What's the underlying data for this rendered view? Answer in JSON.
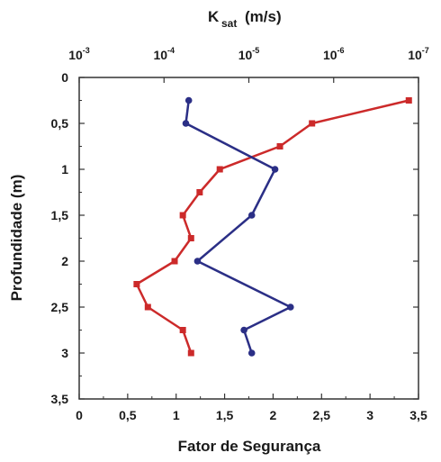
{
  "chart_data": {
    "type": "line",
    "title": "",
    "top_axis": {
      "label_main": "K",
      "label_sub": "sat",
      "label_unit": "(m/s)",
      "scale": "log-reversed",
      "range": [
        0.001,
        1e-07
      ],
      "ticks": [
        {
          "base": "10",
          "exp": "-3",
          "value": 0.001
        },
        {
          "base": "10",
          "exp": "-4",
          "value": 0.0001
        },
        {
          "base": "10",
          "exp": "-5",
          "value": 1e-05
        },
        {
          "base": "10",
          "exp": "-6",
          "value": 1e-06
        },
        {
          "base": "10",
          "exp": "-7",
          "value": 1e-07
        }
      ]
    },
    "bottom_axis": {
      "label": "Fator de Segurança",
      "range": [
        0,
        3.5
      ],
      "ticks": [
        {
          "label": "0",
          "value": 0
        },
        {
          "label": "0,5",
          "value": 0.5
        },
        {
          "label": "1",
          "value": 1
        },
        {
          "label": "1,5",
          "value": 1.5
        },
        {
          "label": "2",
          "value": 2
        },
        {
          "label": "2,5",
          "value": 2.5
        },
        {
          "label": "3",
          "value": 3
        },
        {
          "label": "3,5",
          "value": 3.5
        }
      ]
    },
    "y_axis": {
      "label": "Profundidade (m)",
      "range": [
        0,
        3.5
      ],
      "inverted": true,
      "ticks": [
        {
          "label": "0",
          "value": 0
        },
        {
          "label": "0,5",
          "value": 0.5
        },
        {
          "label": "1",
          "value": 1
        },
        {
          "label": "1,5",
          "value": 1.5
        },
        {
          "label": "2",
          "value": 2
        },
        {
          "label": "2,5",
          "value": 2.5
        },
        {
          "label": "3",
          "value": 3
        },
        {
          "label": "3,5",
          "value": 3.5
        }
      ]
    },
    "grid": false,
    "series": [
      {
        "axis": "top",
        "color": "#cc2a2a",
        "marker": "square",
        "points": [
          {
            "x": 1.3e-07,
            "y": 0.25
          },
          {
            "x": 1.8e-06,
            "y": 0.5
          },
          {
            "x": 4.3e-06,
            "y": 0.75
          },
          {
            "x": 2.2e-05,
            "y": 1.0
          },
          {
            "x": 3.8e-05,
            "y": 1.25
          },
          {
            "x": 6e-05,
            "y": 1.5
          },
          {
            "x": 4.8e-05,
            "y": 1.75
          },
          {
            "x": 7.5e-05,
            "y": 2.0
          },
          {
            "x": 0.00021,
            "y": 2.25
          },
          {
            "x": 0.000155,
            "y": 2.5
          },
          {
            "x": 6e-05,
            "y": 2.75
          },
          {
            "x": 4.8e-05,
            "y": 3.0
          }
        ]
      },
      {
        "axis": "bottom",
        "color": "#2b2f86",
        "marker": "circle",
        "points": [
          {
            "x": 1.13,
            "y": 0.25
          },
          {
            "x": 1.1,
            "y": 0.5
          },
          {
            "x": 2.02,
            "y": 1.0
          },
          {
            "x": 1.78,
            "y": 1.5
          },
          {
            "x": 1.22,
            "y": 2.0
          },
          {
            "x": 2.18,
            "y": 2.5
          },
          {
            "x": 1.7,
            "y": 2.75
          },
          {
            "x": 1.78,
            "y": 3.0
          }
        ]
      }
    ]
  }
}
